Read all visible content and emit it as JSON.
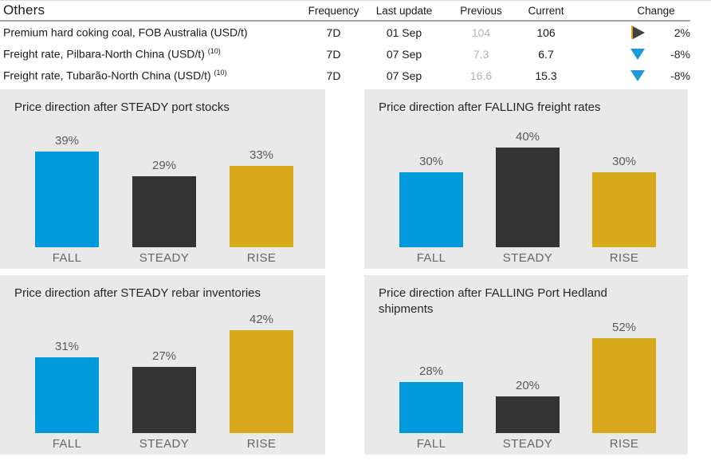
{
  "colors": {
    "accent_blue": "#1b9cd8",
    "bar_blue": "#0099dc",
    "bar_dark": "#333333",
    "bar_gold": "#d7a91b",
    "panel_background": "#e9e9e9",
    "muted_text": "#595959",
    "previous_value_text": "#b3b3b3"
  },
  "table": {
    "title": "Others",
    "headers": {
      "frequency": "Frequency",
      "last_update": "Last update",
      "previous": "Previous",
      "current": "Current",
      "change": "Change"
    },
    "rows": [
      {
        "name": "Premium hard coking coal, FOB Australia (USD/t)",
        "superscript": "",
        "frequency": "7D",
        "last_update": "01 Sep",
        "previous": "104",
        "current": "106",
        "change_icon": "right-triangle",
        "change_pct": "2%"
      },
      {
        "name": "Freight rate, Pilbara-North China (USD/t)",
        "superscript": "(10)",
        "frequency": "7D",
        "last_update": "07 Sep",
        "previous": "7.3",
        "current": "6.7",
        "change_icon": "down-triangle",
        "change_pct": "-8%"
      },
      {
        "name": "Freight rate, Tubarão-North China (USD/t)",
        "superscript": "(10)",
        "frequency": "7D",
        "last_update": "07 Sep",
        "previous": "16.6",
        "current": "15.3",
        "change_icon": "down-triangle",
        "change_pct": "-8%"
      }
    ]
  },
  "chart_data": [
    {
      "type": "bar",
      "title": "Price direction after STEADY port stocks",
      "categories": [
        "FALL",
        "STEADY",
        "RISE"
      ],
      "values": [
        39,
        29,
        33
      ],
      "labels": [
        "39%",
        "29%",
        "33%"
      ],
      "bar_colors": [
        "#0099dc",
        "#333333",
        "#d7a91b"
      ],
      "xlabel": "",
      "ylabel": "",
      "grid": false,
      "legend": "none"
    },
    {
      "type": "bar",
      "title": "Price direction after FALLING freight rates",
      "categories": [
        "FALL",
        "STEADY",
        "RISE"
      ],
      "values": [
        30,
        40,
        30
      ],
      "labels": [
        "30%",
        "40%",
        "30%"
      ],
      "bar_colors": [
        "#0099dc",
        "#333333",
        "#d7a91b"
      ],
      "xlabel": "",
      "ylabel": "",
      "grid": false,
      "legend": "none"
    },
    {
      "type": "bar",
      "title": "Price direction after STEADY rebar inventories",
      "categories": [
        "FALL",
        "STEADY",
        "RISE"
      ],
      "values": [
        31,
        27,
        42
      ],
      "labels": [
        "31%",
        "27%",
        "42%"
      ],
      "bar_colors": [
        "#0099dc",
        "#333333",
        "#d7a91b"
      ],
      "xlabel": "",
      "ylabel": "",
      "grid": false,
      "legend": "none"
    },
    {
      "type": "bar",
      "title": "Price direction after FALLING Port Hedland\nshipments",
      "categories": [
        "FALL",
        "STEADY",
        "RISE"
      ],
      "values": [
        28,
        20,
        52
      ],
      "labels": [
        "28%",
        "20%",
        "52%"
      ],
      "bar_colors": [
        "#0099dc",
        "#333333",
        "#d7a91b"
      ],
      "xlabel": "",
      "ylabel": "",
      "grid": false,
      "legend": "none"
    }
  ]
}
